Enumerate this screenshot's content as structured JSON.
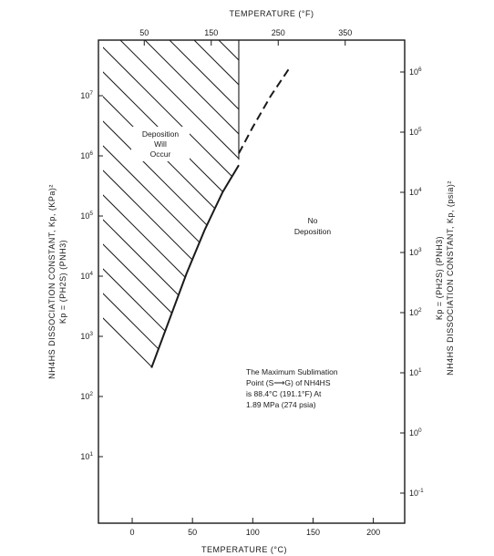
{
  "chart_data": {
    "type": "line",
    "x_bottom": {
      "label": "TEMPERATURE (°C)",
      "range": [
        -28,
        226
      ],
      "ticks": [
        0,
        50,
        100,
        150,
        200
      ],
      "tick_labels": [
        "0",
        "50",
        "100",
        "150",
        "200"
      ]
    },
    "x_top": {
      "label": "TEMPERATURE (°F)",
      "ticks": [
        50,
        150,
        250,
        350
      ],
      "tick_labels": [
        "50",
        "150",
        "250",
        "350"
      ]
    },
    "y_left": {
      "label_line1": "NH4HS DISSOCIATION CONSTANT, Kp, (KPa)²",
      "label_line2": "Kp = (PH2S) (PNH3)",
      "scale": "log",
      "ticks": [
        10,
        100,
        1000,
        10000,
        100000,
        1000000,
        10000000
      ],
      "tick_labels": [
        {
          "base": "10",
          "exp": "1"
        },
        {
          "base": "10",
          "exp": "2"
        },
        {
          "base": "10",
          "exp": "3"
        },
        {
          "base": "10",
          "exp": "4"
        },
        {
          "base": "10",
          "exp": "5"
        },
        {
          "base": "10",
          "exp": "6"
        },
        {
          "base": "10",
          "exp": "7"
        }
      ]
    },
    "y_right": {
      "label_line1": "Kp = (PH2S) (PNH3)",
      "label_line2": "NH4HS DISSOCIATION CONSTANT, Kp, (psia)²",
      "scale": "log",
      "ticks": [
        0.1,
        1,
        10,
        100,
        1000,
        10000,
        100000,
        1000000
      ],
      "tick_labels": [
        {
          "base": "10",
          "exp": "-1"
        },
        {
          "base": "10",
          "exp": "0"
        },
        {
          "base": "10",
          "exp": "1"
        },
        {
          "base": "10",
          "exp": "2"
        },
        {
          "base": "10",
          "exp": "3"
        },
        {
          "base": "10",
          "exp": "4"
        },
        {
          "base": "10",
          "exp": "5"
        },
        {
          "base": "10",
          "exp": "6"
        }
      ]
    },
    "series": [
      {
        "style": "solid",
        "x": [
          16,
          30,
          45,
          60,
          75,
          88.4
        ],
        "y": [
          300,
          1700,
          11000,
          58000,
          250000,
          700000
        ]
      },
      {
        "style": "dashed",
        "x": [
          88.4,
          100,
          115,
          130
        ],
        "y": [
          1100000,
          3000000,
          10000000,
          28000000
        ]
      }
    ],
    "hatched_region": {
      "label": [
        "Deposition",
        "Will",
        "Occur"
      ],
      "boundary_temperature_c": 88.4
    },
    "regions": [
      {
        "label": [
          "No",
          "Deposition"
        ]
      }
    ],
    "annotation": {
      "lines": [
        "The Maximum Sublimation",
        "Point (S⟶G) of NH4HS",
        "is 88.4°C (191.1°F) At",
        "1.89 MPa (274 psia)"
      ]
    }
  }
}
